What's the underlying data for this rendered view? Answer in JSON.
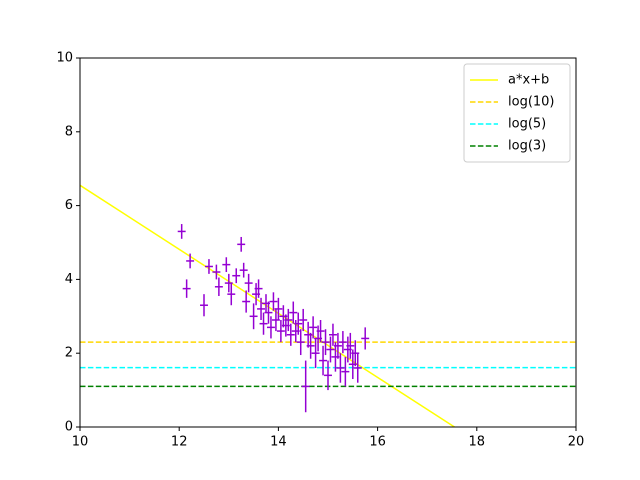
{
  "chart_data": {
    "type": "errorbar",
    "xlim": [
      10,
      20
    ],
    "xticks": [
      10,
      12,
      14,
      16,
      18,
      20
    ],
    "ylim": [
      0,
      10
    ],
    "yticks": [
      0,
      2,
      4,
      6,
      8,
      10
    ],
    "legend": "upper right",
    "series": [
      {
        "name": "a*x+b",
        "type": "line",
        "style": "solid",
        "color": "#ffff00",
        "x": [
          10,
          17.55
        ],
        "values": [
          6.55,
          0
        ]
      },
      {
        "name": "log(10)",
        "type": "line",
        "style": "dashed",
        "color": "#ffd700",
        "x": [
          10,
          20
        ],
        "values": [
          2.3,
          2.3
        ]
      },
      {
        "name": "log(5)",
        "type": "line",
        "style": "dashed",
        "color": "#00ffff",
        "x": [
          10,
          20
        ],
        "values": [
          1.61,
          1.61
        ]
      },
      {
        "name": "log(3)",
        "type": "line",
        "style": "dashed",
        "color": "#008000",
        "x": [
          10,
          20
        ],
        "values": [
          1.1,
          1.1
        ]
      },
      {
        "type": "errorbar",
        "color": "#9400d3",
        "x": [
          12.05,
          12.15,
          12.22,
          12.5,
          12.6,
          12.75,
          12.8,
          12.95,
          13.0,
          13.05,
          13.15,
          13.25,
          13.3,
          13.35,
          13.4,
          13.5,
          13.55,
          13.6,
          13.65,
          13.7,
          13.75,
          13.8,
          13.85,
          13.9,
          13.95,
          14.0,
          14.05,
          14.1,
          14.15,
          14.2,
          14.25,
          14.3,
          14.35,
          14.4,
          14.45,
          14.5,
          14.55,
          14.6,
          14.65,
          14.7,
          14.75,
          14.8,
          14.85,
          14.9,
          14.95,
          15.0,
          15.05,
          15.1,
          15.15,
          15.2,
          15.25,
          15.3,
          15.35,
          15.4,
          15.45,
          15.5,
          15.55,
          15.6,
          15.75
        ],
        "values": [
          5.3,
          3.75,
          4.5,
          3.3,
          4.35,
          4.2,
          3.8,
          4.4,
          3.9,
          3.6,
          4.1,
          4.95,
          4.25,
          3.4,
          3.9,
          3.0,
          3.6,
          3.75,
          3.2,
          2.8,
          3.35,
          3.1,
          2.7,
          3.4,
          2.9,
          3.2,
          2.6,
          3.0,
          2.75,
          2.9,
          2.5,
          3.1,
          2.6,
          2.8,
          2.3,
          2.9,
          1.1,
          2.5,
          2.2,
          2.7,
          2.0,
          2.4,
          2.6,
          1.8,
          2.3,
          1.4,
          2.1,
          2.5,
          1.9,
          2.2,
          1.6,
          2.3,
          1.5,
          2.1,
          2.2,
          1.7,
          2.0,
          1.6,
          2.4
        ],
        "xerr": [
          0.08,
          0.08,
          0.08,
          0.08,
          0.08,
          0.08,
          0.08,
          0.08,
          0.08,
          0.08,
          0.08,
          0.08,
          0.08,
          0.08,
          0.08,
          0.08,
          0.08,
          0.08,
          0.08,
          0.08,
          0.08,
          0.08,
          0.08,
          0.08,
          0.08,
          0.08,
          0.08,
          0.08,
          0.08,
          0.08,
          0.08,
          0.08,
          0.08,
          0.08,
          0.08,
          0.08,
          0.08,
          0.08,
          0.08,
          0.08,
          0.08,
          0.08,
          0.08,
          0.08,
          0.08,
          0.08,
          0.08,
          0.08,
          0.08,
          0.08,
          0.08,
          0.08,
          0.08,
          0.08,
          0.08,
          0.08,
          0.08,
          0.08,
          0.08
        ],
        "yerr": [
          0.2,
          0.25,
          0.2,
          0.3,
          0.2,
          0.2,
          0.25,
          0.2,
          0.25,
          0.3,
          0.2,
          0.2,
          0.2,
          0.3,
          0.25,
          0.35,
          0.3,
          0.25,
          0.3,
          0.3,
          0.25,
          0.3,
          0.3,
          0.25,
          0.3,
          0.3,
          0.3,
          0.3,
          0.3,
          0.3,
          0.3,
          0.3,
          0.3,
          0.3,
          0.35,
          0.3,
          0.7,
          0.35,
          0.35,
          0.3,
          0.4,
          0.35,
          0.3,
          0.4,
          0.35,
          0.4,
          0.35,
          0.3,
          0.4,
          0.35,
          0.4,
          0.3,
          0.4,
          0.35,
          0.35,
          0.4,
          0.35,
          0.4,
          0.3
        ]
      }
    ]
  }
}
